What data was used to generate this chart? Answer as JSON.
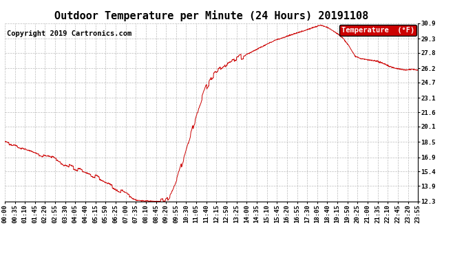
{
  "title": "Outdoor Temperature per Minute (24 Hours) 20191108",
  "copyright_text": "Copyright 2019 Cartronics.com",
  "legend_label": "Temperature  (°F)",
  "legend_bg": "#cc0000",
  "legend_text_color": "#ffffff",
  "line_color": "#cc0000",
  "bg_color": "#ffffff",
  "grid_color": "#aaaaaa",
  "yticks": [
    12.3,
    13.9,
    15.4,
    16.9,
    18.5,
    20.1,
    21.6,
    23.1,
    24.7,
    26.2,
    27.8,
    29.3,
    30.9
  ],
  "ymin": 12.3,
  "ymax": 30.9,
  "xtick_labels": [
    "00:00",
    "00:35",
    "01:10",
    "01:45",
    "02:20",
    "02:55",
    "03:30",
    "04:05",
    "04:40",
    "05:15",
    "05:50",
    "06:25",
    "07:00",
    "07:35",
    "08:10",
    "08:45",
    "09:20",
    "09:55",
    "10:30",
    "11:05",
    "11:40",
    "12:15",
    "12:50",
    "13:25",
    "14:00",
    "14:35",
    "15:10",
    "15:45",
    "16:20",
    "16:55",
    "17:30",
    "18:05",
    "18:40",
    "19:15",
    "19:50",
    "20:25",
    "21:00",
    "21:35",
    "22:10",
    "22:45",
    "23:20",
    "23:55"
  ],
  "key_times": [
    0,
    20,
    50,
    80,
    110,
    150,
    185,
    210,
    245,
    280,
    315,
    350,
    380,
    395,
    415,
    430,
    445,
    460,
    480,
    500,
    520,
    540,
    560,
    580,
    600,
    620,
    640,
    660,
    680,
    700,
    720,
    740,
    760,
    780,
    800,
    820,
    840,
    860,
    880,
    900,
    920,
    940,
    960,
    980,
    1000,
    1020,
    1040,
    1060,
    1080,
    1100,
    1120,
    1140,
    1160,
    1180,
    1200,
    1220,
    1240,
    1260,
    1280,
    1300,
    1320,
    1340,
    1360,
    1380,
    1400,
    1420,
    1435
  ],
  "key_values": [
    18.5,
    18.3,
    18.0,
    17.7,
    17.4,
    17.0,
    16.5,
    16.1,
    15.7,
    15.3,
    14.8,
    14.3,
    13.8,
    13.5,
    13.2,
    12.9,
    12.6,
    12.4,
    12.35,
    12.32,
    12.3,
    12.31,
    12.35,
    13.0,
    14.5,
    16.5,
    18.5,
    20.5,
    22.5,
    24.2,
    25.2,
    25.8,
    26.3,
    26.7,
    27.0,
    27.3,
    27.6,
    27.9,
    28.2,
    28.5,
    28.8,
    29.1,
    29.3,
    29.5,
    29.7,
    29.9,
    30.1,
    30.3,
    30.5,
    30.7,
    30.5,
    30.2,
    29.8,
    29.3,
    28.5,
    27.5,
    27.2,
    27.1,
    27.0,
    26.9,
    26.7,
    26.4,
    26.2,
    26.1,
    26.0,
    26.1,
    26.0
  ],
  "title_fontsize": 11,
  "tick_fontsize": 6.5,
  "copyright_fontsize": 7.5,
  "legend_fontsize": 7.5
}
